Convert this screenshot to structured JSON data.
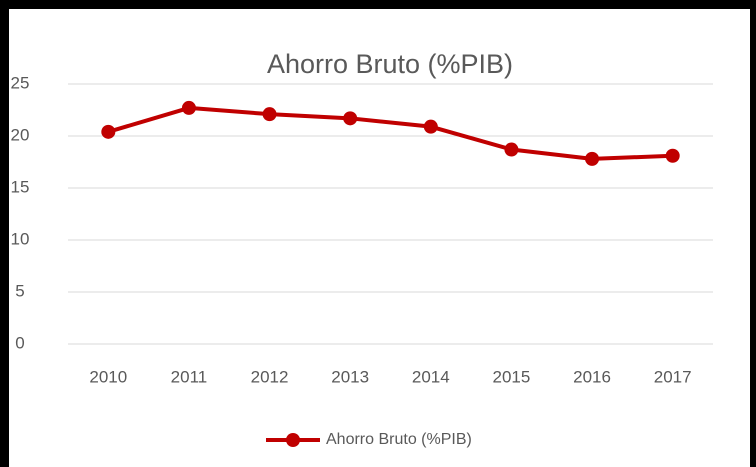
{
  "chart_data": {
    "type": "line",
    "title": "Ahorro Bruto (%PIB)",
    "categories": [
      "2010",
      "2011",
      "2012",
      "2013",
      "2014",
      "2015",
      "2016",
      "2017"
    ],
    "series": [
      {
        "name": "Ahorro Bruto (%PIB)",
        "color": "#c00000",
        "values": [
          20.4,
          22.7,
          22.1,
          21.7,
          20.9,
          18.7,
          17.8,
          18.1
        ]
      }
    ],
    "ylim": [
      0,
      25
    ],
    "yticks": [
      0,
      5,
      10,
      15,
      20,
      25
    ],
    "grid": true,
    "legend": "bottom"
  }
}
